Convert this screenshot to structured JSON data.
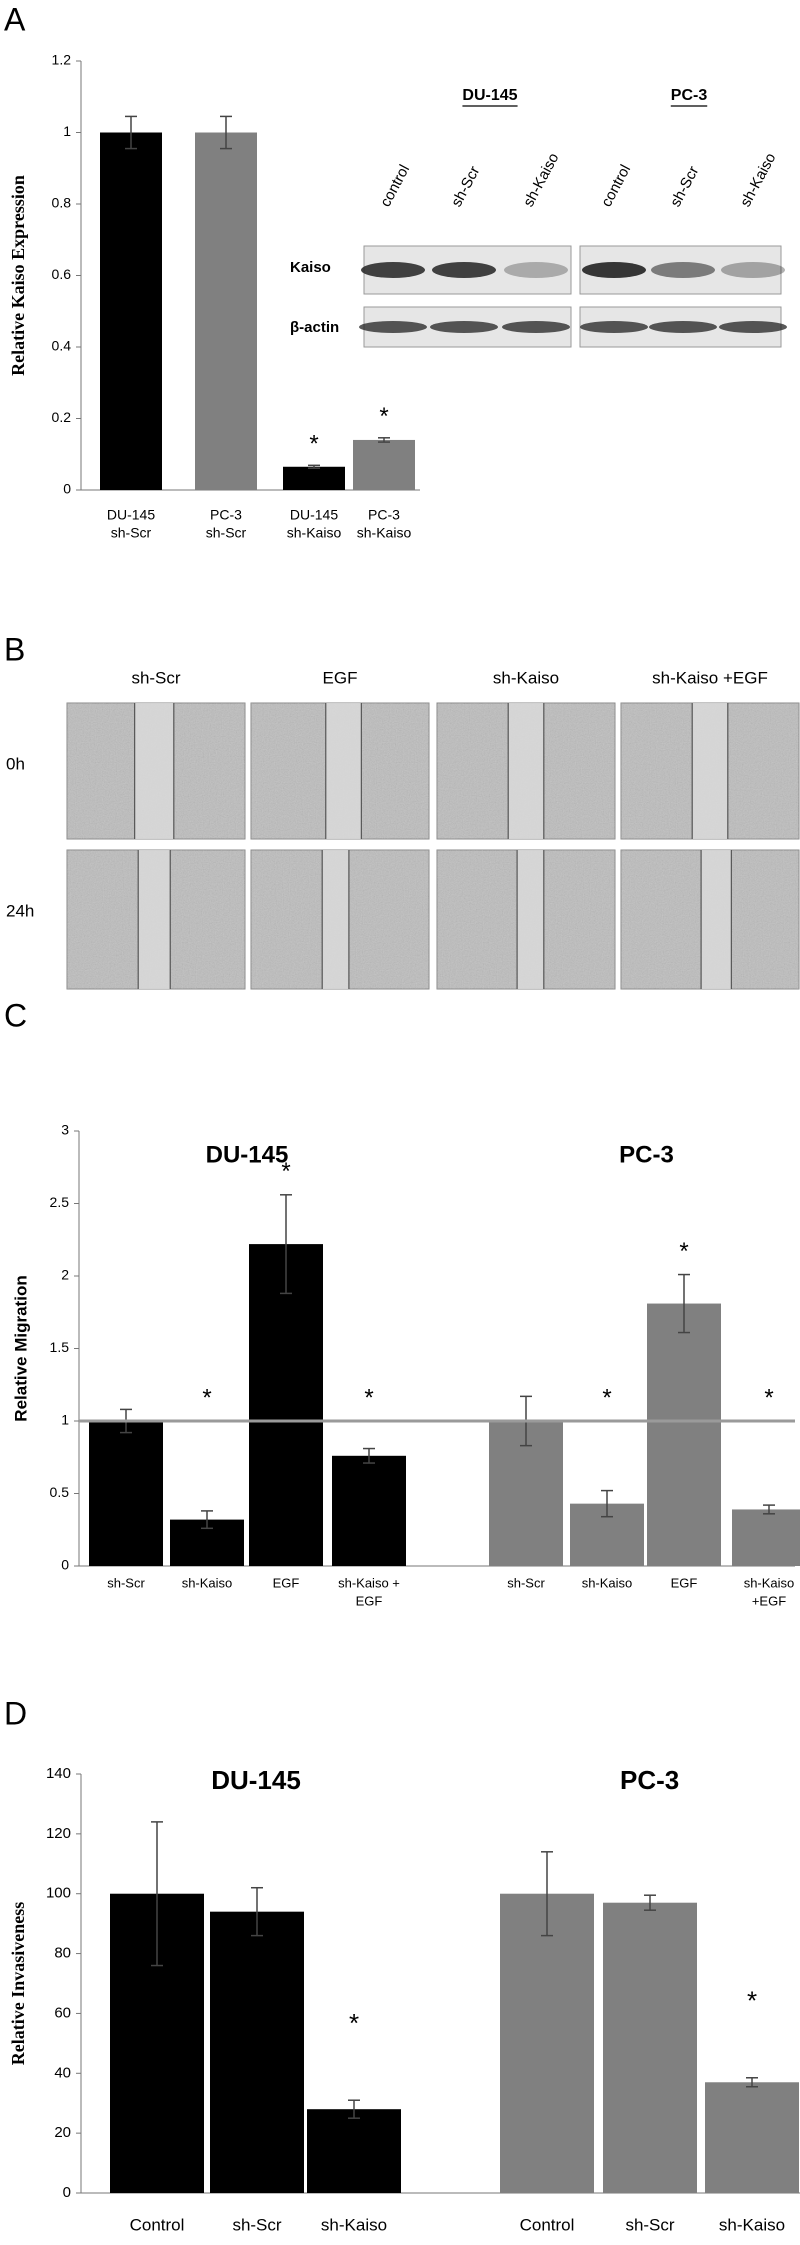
{
  "panel_labels": [
    "A",
    "B",
    "C",
    "D"
  ],
  "western_blot": {
    "cell_lines": [
      "DU-145",
      "PC-3"
    ],
    "lanes": [
      "control",
      "sh-Scr",
      "sh-Kaiso",
      "control",
      "sh-Scr",
      "sh-Kaiso"
    ],
    "proteins": [
      "Kaiso",
      "β-actin"
    ]
  },
  "wound_healing": {
    "conditions": [
      "sh-Scr",
      "EGF",
      "sh-Kaiso",
      "sh-Kaiso +EGF"
    ],
    "timepoints": [
      "0h",
      "24h"
    ]
  },
  "chart_data": [
    {
      "type": "bar",
      "y_label": "Relative Kaiso Expression",
      "ylim": [
        0,
        1.2
      ],
      "yticks": [
        0,
        0.2,
        0.4,
        0.6,
        0.8,
        1,
        1.2
      ],
      "groups": [
        {
          "categories": [
            [
              "DU-145",
              "sh-Scr"
            ],
            [
              "PC-3",
              "sh-Scr"
            ],
            [
              "DU-145",
              "sh-Kaiso"
            ],
            [
              "PC-3",
              "sh-Kaiso"
            ]
          ],
          "values": [
            1,
            1,
            0.065,
            0.14
          ],
          "errors": [
            0.045,
            0.045,
            0.004,
            0.006
          ],
          "colors": [
            "#000000",
            "#808080",
            "#000000",
            "#808080"
          ],
          "stars": [
            null,
            null,
            "*",
            "*"
          ]
        }
      ]
    },
    {
      "type": "bar",
      "y_label": "Relative Migration",
      "ylim": [
        0,
        3
      ],
      "yticks": [
        0,
        0.5,
        1,
        1.5,
        2,
        2.5,
        3
      ],
      "reference_line": 1,
      "reference_color": "#9a9a9a",
      "groups": [
        {
          "name": "DU-145",
          "color": "#000000",
          "categories": [
            "sh-Scr",
            "sh-Kaiso",
            "EGF",
            [
              "sh-Kaiso +",
              "EGF"
            ]
          ],
          "values": [
            1.0,
            0.32,
            2.22,
            0.76
          ],
          "errors": [
            0.08,
            0.06,
            0.34,
            0.05
          ],
          "stars": [
            null,
            "*",
            "*",
            "*"
          ]
        },
        {
          "name": "PC-3",
          "color": "#808080",
          "categories": [
            "sh-Scr",
            "sh-Kaiso",
            "EGF",
            [
              "sh-Kaiso",
              "+EGF"
            ]
          ],
          "values": [
            1.0,
            0.43,
            1.81,
            0.39
          ],
          "errors": [
            0.17,
            0.09,
            0.2,
            0.03
          ],
          "stars": [
            null,
            "*",
            "*",
            "*"
          ]
        }
      ]
    },
    {
      "type": "bar",
      "y_label": "Relative Invasiveness",
      "ylim": [
        0,
        140
      ],
      "yticks": [
        0,
        20,
        40,
        60,
        80,
        100,
        120,
        140
      ],
      "groups": [
        {
          "name": "DU-145",
          "color": "#000000",
          "categories": [
            "Control",
            "sh-Scr",
            "sh-Kaiso"
          ],
          "values": [
            100,
            94,
            28
          ],
          "errors": [
            24,
            8,
            3
          ],
          "stars": [
            null,
            null,
            "*"
          ]
        },
        {
          "name": "PC-3",
          "color": "#808080",
          "categories": [
            "Control",
            "sh-Scr",
            "sh-Kaiso"
          ],
          "values": [
            100,
            97,
            37
          ],
          "errors": [
            14,
            2.5,
            1.5
          ],
          "stars": [
            null,
            null,
            "*"
          ]
        }
      ]
    }
  ]
}
